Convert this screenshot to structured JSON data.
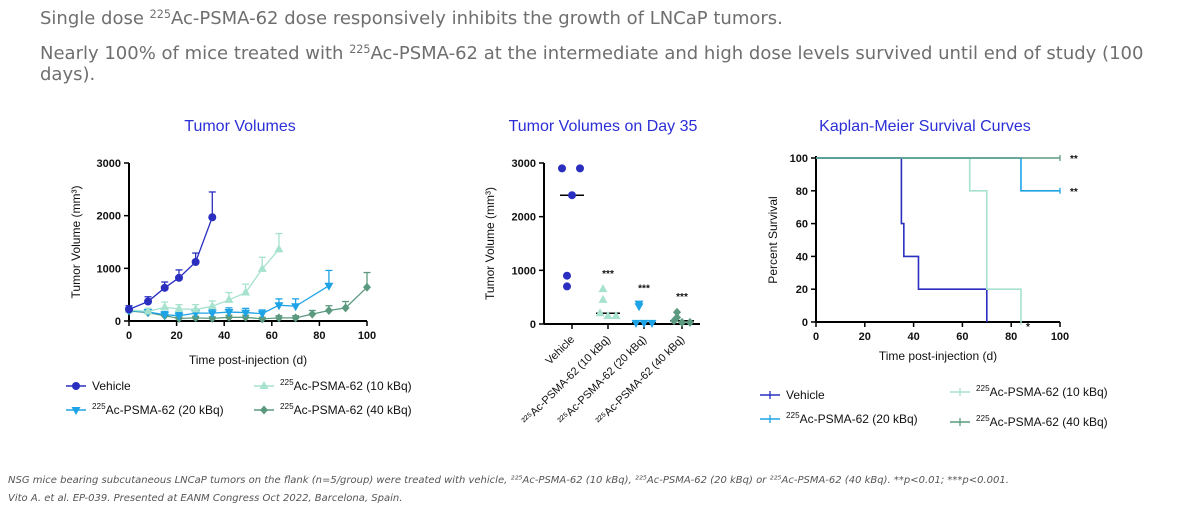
{
  "headlines": [
    {
      "pre": "Single dose ",
      "sup": "225",
      "post": "Ac-PSMA-62 dose responsively inhibits the growth of LNCaP tumors."
    },
    {
      "pre": "Nearly 100% of mice treated with ",
      "sup": "225",
      "post": "Ac-PSMA-62 at the intermediate and high dose levels survived until end of study (100 days)."
    }
  ],
  "footnote": {
    "line1": "NSG mice bearing subcutaneous LNCaP tumors on the flank (n=5/group) were treated with vehicle, ²²⁵Ac-PSMA-62 (10 kBq), ²²⁵Ac-PSMA-62 (20 kBq) or ²²⁵Ac-PSMA-62 (40 kBq). **p<0.01; ***p<0.001.",
    "line2": "Vito A. et al. EP-039. Presented at EANM Congress Oct 2022, Barcelona, Spain."
  },
  "colors": {
    "title": "#2b2fd6",
    "vehicle": "#2b2fc0",
    "d10": "#a6e2cd",
    "d20": "#1ea3e6",
    "d40": "#5c9a80"
  },
  "chart_data": [
    {
      "type": "line",
      "title": "Tumor Volumes",
      "xlabel": "Time post-injection (d)",
      "ylabel": "Tumor Volume (mm³)",
      "xlim": [
        0,
        100
      ],
      "ylim": [
        0,
        3000
      ],
      "xticks": [
        0,
        20,
        40,
        60,
        80,
        100
      ],
      "yticks": [
        0,
        1000,
        2000,
        3000
      ],
      "series": [
        {
          "key": "vehicle",
          "name": "Vehicle",
          "marker": "circle",
          "x": [
            0,
            8,
            15,
            21,
            28,
            35
          ],
          "y": [
            220,
            370,
            630,
            820,
            1120,
            1970
          ],
          "err": [
            70,
            90,
            110,
            150,
            170,
            480
          ]
        },
        {
          "key": "d10",
          "name": "²²⁵Ac-PSMA-62 (10 kBq)",
          "marker": "triangle",
          "x": [
            0,
            8,
            15,
            21,
            28,
            35,
            42,
            49,
            56,
            63
          ],
          "y": [
            210,
            180,
            260,
            230,
            220,
            280,
            400,
            540,
            990,
            1360
          ],
          "err": [
            60,
            60,
            100,
            80,
            90,
            100,
            140,
            160,
            220,
            300
          ]
        },
        {
          "key": "d20",
          "name": "²²⁵Ac-PSMA-62 (20 kBq)",
          "marker": "triangle-down",
          "x": [
            0,
            8,
            15,
            21,
            28,
            35,
            42,
            49,
            56,
            63,
            70,
            84
          ],
          "y": [
            200,
            170,
            120,
            100,
            150,
            150,
            170,
            160,
            140,
            300,
            280,
            670
          ],
          "err": [
            50,
            50,
            60,
            60,
            70,
            70,
            80,
            80,
            70,
            120,
            140,
            290
          ]
        },
        {
          "key": "d40",
          "name": "²²⁵Ac-PSMA-62 (40 kBq)",
          "marker": "diamond",
          "x": [
            0,
            8,
            15,
            21,
            28,
            35,
            42,
            49,
            56,
            63,
            70,
            77,
            84,
            91,
            100
          ],
          "y": [
            190,
            160,
            100,
            50,
            60,
            50,
            70,
            70,
            40,
            60,
            60,
            130,
            200,
            250,
            640
          ],
          "err": [
            40,
            40,
            40,
            30,
            30,
            30,
            40,
            40,
            30,
            40,
            40,
            70,
            90,
            120,
            280
          ]
        }
      ],
      "legend": [
        {
          "key": "vehicle",
          "pre": "",
          "sup": "",
          "post": "Vehicle"
        },
        {
          "key": "d10",
          "pre": "",
          "sup": "225",
          "post": "Ac-PSMA-62 (10 kBq)"
        },
        {
          "key": "d20",
          "pre": "",
          "sup": "225",
          "post": "Ac-PSMA-62 (20 kBq)"
        },
        {
          "key": "d40",
          "pre": "",
          "sup": "225",
          "post": "Ac-PSMA-62 (40 kBq)"
        }
      ]
    },
    {
      "type": "scatter",
      "title": "Tumor Volumes on Day 35",
      "ylabel": "Tumor Volume (mm³)",
      "ylim": [
        0,
        3000
      ],
      "yticks": [
        0,
        1000,
        2000,
        3000
      ],
      "categories": [
        "Vehicle",
        "²²⁵Ac-PSMA-62 (10 kBq)",
        "²²⁵Ac-PSMA-62 (20 kBq)",
        "²²⁵Ac-PSMA-62 (40 kBq)"
      ],
      "groups": [
        {
          "key": "vehicle",
          "marker": "circle",
          "points": [
            2900,
            2900,
            2400,
            900,
            700
          ],
          "median": 2400,
          "significance": ""
        },
        {
          "key": "d10",
          "marker": "triangle",
          "points": [
            650,
            450,
            200,
            150,
            150
          ],
          "median": 200,
          "significance": "***"
        },
        {
          "key": "d20",
          "marker": "triangle-down",
          "points": [
            380,
            330,
            20,
            20,
            20
          ],
          "median": 20,
          "significance": "***"
        },
        {
          "key": "d40",
          "marker": "diamond",
          "points": [
            220,
            120,
            60,
            30,
            30
          ],
          "median": 60,
          "significance": "***"
        }
      ]
    },
    {
      "type": "line",
      "title": "Kaplan-Meier Survival Curves",
      "xlabel": "Time post-injection (d)",
      "ylabel": "Percent Survival",
      "xlim": [
        0,
        100
      ],
      "ylim": [
        0,
        100
      ],
      "xticks": [
        0,
        20,
        40,
        60,
        80,
        100
      ],
      "yticks": [
        0,
        20,
        40,
        60,
        80,
        100
      ],
      "series": [
        {
          "key": "vehicle",
          "name": "Vehicle",
          "x": [
            0,
            35,
            36,
            42,
            70
          ],
          "y": [
            100,
            60,
            40,
            20,
            0
          ],
          "end_label": ""
        },
        {
          "key": "d10",
          "name": "²²⁵Ac-PSMA-62 (10 kBq)",
          "x": [
            0,
            63,
            70,
            84
          ],
          "y": [
            100,
            80,
            20,
            0
          ],
          "end_label": "*"
        },
        {
          "key": "d20",
          "name": "²²⁵Ac-PSMA-62 (20 kBq)",
          "x": [
            0,
            84,
            100
          ],
          "y": [
            100,
            80,
            80
          ],
          "end_label": "**"
        },
        {
          "key": "d40",
          "name": "²²⁵Ac-PSMA-62 (40 kBq)",
          "x": [
            0,
            100
          ],
          "y": [
            100,
            100
          ],
          "end_label": "**"
        }
      ],
      "legend": [
        {
          "key": "vehicle",
          "pre": "",
          "sup": "",
          "post": "Vehicle"
        },
        {
          "key": "d10",
          "pre": "",
          "sup": "225",
          "post": "Ac-PSMA-62 (10 kBq)"
        },
        {
          "key": "d20",
          "pre": "",
          "sup": "225",
          "post": "Ac-PSMA-62 (20 kBq)"
        },
        {
          "key": "d40",
          "pre": "",
          "sup": "225",
          "post": "Ac-PSMA-62 (40 kBq)"
        }
      ]
    }
  ]
}
